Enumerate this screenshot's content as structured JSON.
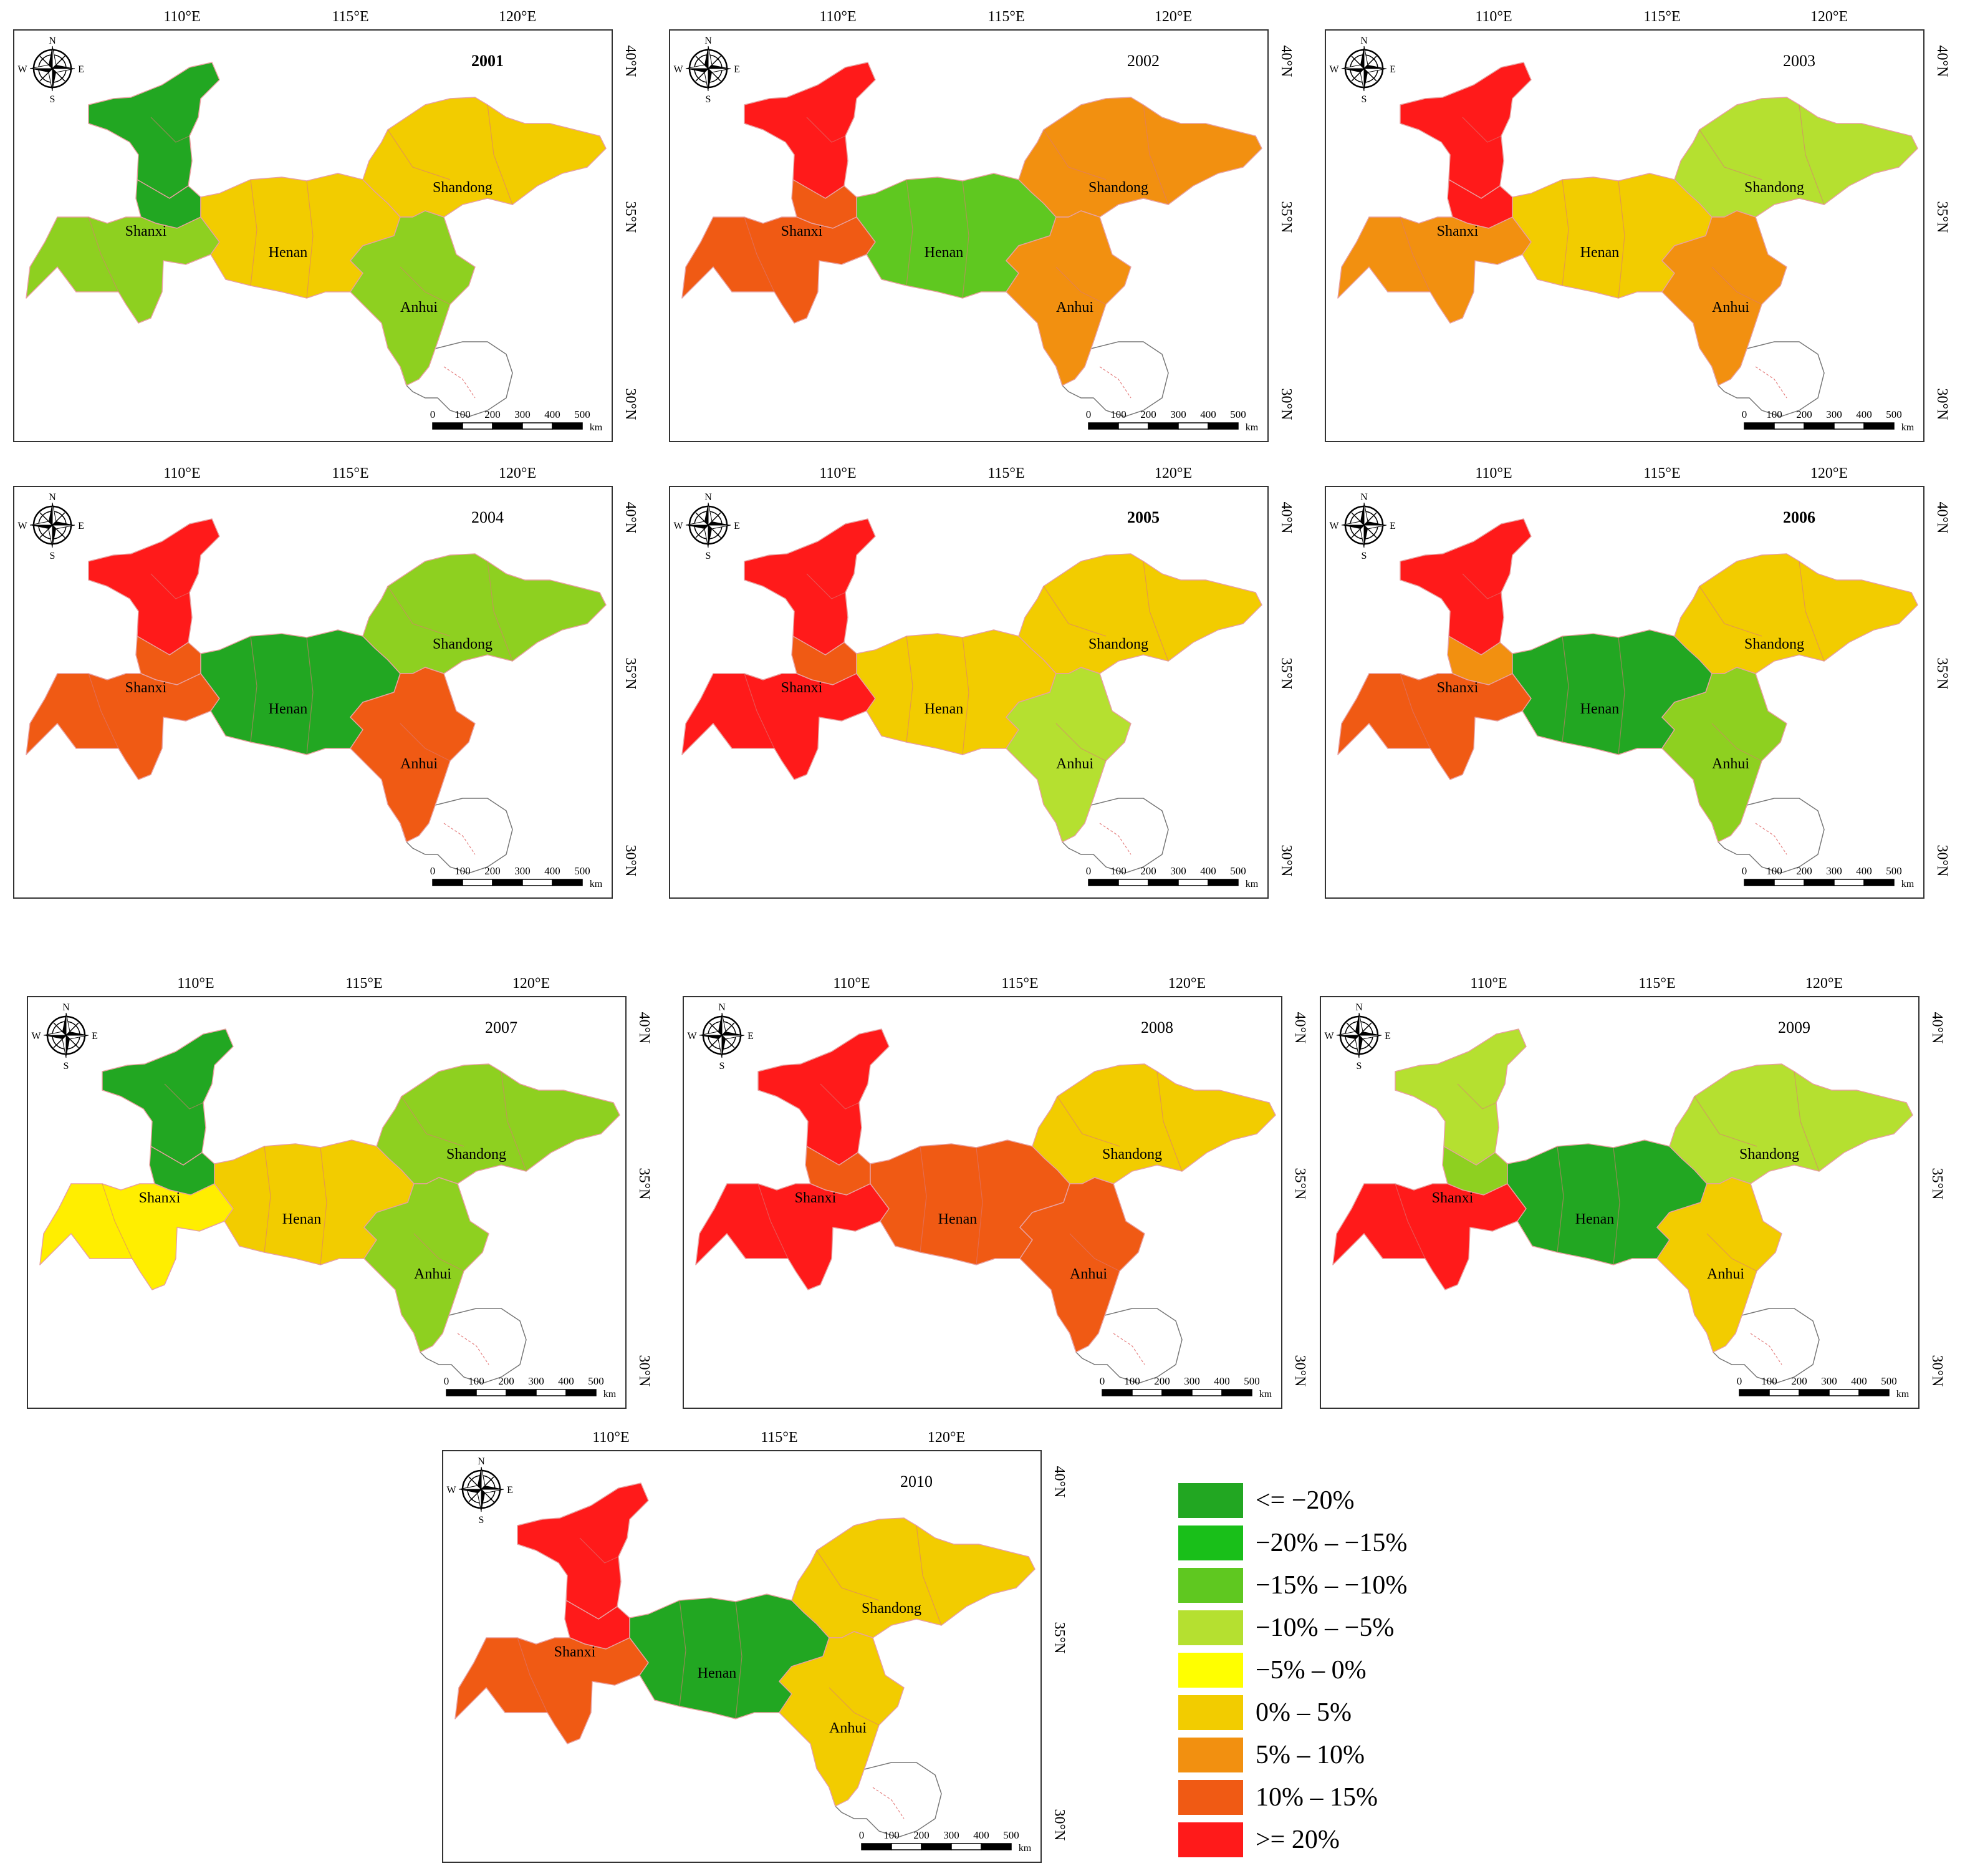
{
  "axis_labels": {
    "lon": [
      "110°E",
      "115°E",
      "120°E"
    ],
    "lat": [
      "40°N",
      "35°N",
      "30°N"
    ]
  },
  "compass": {
    "n": "N",
    "s": "S",
    "w": "W",
    "e": "E"
  },
  "scale_bar": {
    "ticks": [
      "0",
      "100",
      "200",
      "300",
      "400",
      "500"
    ],
    "unit": "km"
  },
  "province_labels": [
    "Shanxi",
    "Henan",
    "Shandong",
    "Anhui"
  ],
  "maps": [
    {
      "year": "2001",
      "bold": true,
      "colors": {
        "Shanxi_n": "#22a722",
        "Shanxi_m": "#22a722",
        "Shanxi_s": "#8ed020",
        "Henan": "#f2cc00",
        "Shandong": "#f2cc00",
        "Anhui": "#8ed020"
      }
    },
    {
      "year": "2002",
      "bold": false,
      "colors": {
        "Shanxi_n": "#ff1a1a",
        "Shanxi_m": "#f05a14",
        "Shanxi_s": "#f05a14",
        "Henan": "#5fc820",
        "Shandong": "#f29010",
        "Anhui": "#f29010"
      }
    },
    {
      "year": "2003",
      "bold": false,
      "colors": {
        "Shanxi_n": "#ff1a1a",
        "Shanxi_m": "#ff1a1a",
        "Shanxi_s": "#f29010",
        "Henan": "#f2cc00",
        "Shandong": "#b5e030",
        "Anhui": "#f29010"
      }
    },
    {
      "year": "2004",
      "bold": false,
      "colors": {
        "Shanxi_n": "#ff1a1a",
        "Shanxi_m": "#f05a14",
        "Shanxi_s": "#f05a14",
        "Henan": "#22a722",
        "Shandong": "#8ed020",
        "Anhui": "#f05a14"
      }
    },
    {
      "year": "2005",
      "bold": true,
      "colors": {
        "Shanxi_n": "#ff1a1a",
        "Shanxi_m": "#f05a14",
        "Shanxi_s": "#ff1a1a",
        "Henan": "#f2cc00",
        "Shandong": "#f2cc00",
        "Anhui": "#b5e030"
      }
    },
    {
      "year": "2006",
      "bold": true,
      "colors": {
        "Shanxi_n": "#ff1a1a",
        "Shanxi_m": "#f29010",
        "Shanxi_s": "#f05a14",
        "Henan": "#22a722",
        "Shandong": "#f2cc00",
        "Anhui": "#8ed020"
      }
    },
    {
      "year": "2007",
      "bold": false,
      "colors": {
        "Shanxi_n": "#22a722",
        "Shanxi_m": "#22a722",
        "Shanxi_s": "#ffee00",
        "Henan": "#f2cc00",
        "Shandong": "#8ed020",
        "Anhui": "#8ed020"
      }
    },
    {
      "year": "2008",
      "bold": false,
      "colors": {
        "Shanxi_n": "#ff1a1a",
        "Shanxi_m": "#f05a14",
        "Shanxi_s": "#ff1a1a",
        "Henan": "#f05a14",
        "Shandong": "#f2cc00",
        "Anhui": "#f05a14"
      }
    },
    {
      "year": "2009",
      "bold": false,
      "colors": {
        "Shanxi_n": "#b5e030",
        "Shanxi_m": "#8ed020",
        "Shanxi_s": "#ff1a1a",
        "Henan": "#22a722",
        "Shandong": "#b5e030",
        "Anhui": "#f2cc00"
      }
    },
    {
      "year": "2010",
      "bold": false,
      "colors": {
        "Shanxi_n": "#ff1a1a",
        "Shanxi_m": "#ff1a1a",
        "Shanxi_s": "#f05a14",
        "Henan": "#22a722",
        "Shandong": "#f2cc00",
        "Anhui": "#f2cc00"
      }
    }
  ],
  "legend": [
    {
      "label": "<= −20%",
      "color": "#22a722"
    },
    {
      "label": "−20% – −15%",
      "color": "#19bf19"
    },
    {
      "label": "−15% – −10%",
      "color": "#5fc820"
    },
    {
      "label": "−10% – −5%",
      "color": "#b5e030"
    },
    {
      "label": "−5% – 0%",
      "color": "#ffff00"
    },
    {
      "label": "0% – 5%",
      "color": "#f2cc00"
    },
    {
      "label": "5% – 10%",
      "color": "#f29010"
    },
    {
      "label": "10% – 15%",
      "color": "#f05a14"
    },
    {
      "label": ">= 20%",
      "color": "#ff1a1a"
    }
  ]
}
